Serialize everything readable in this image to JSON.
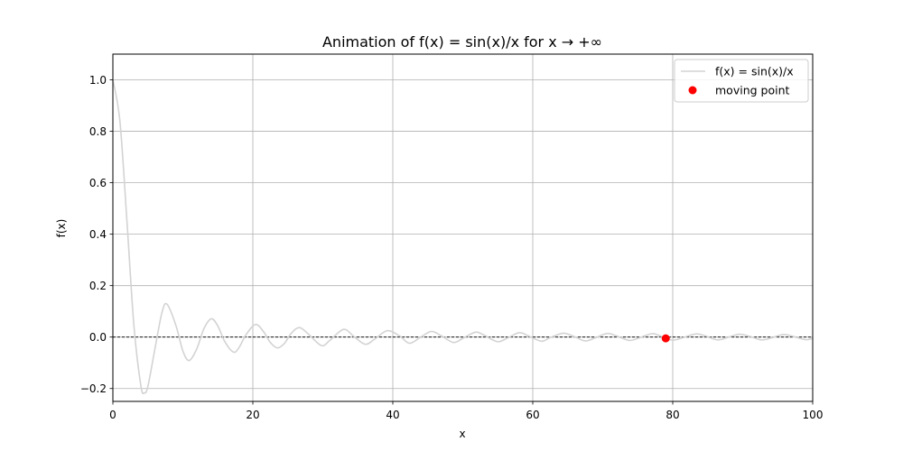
{
  "chart_data": {
    "type": "line",
    "title": "Animation of f(x) = sin(x)/x for x → +∞",
    "xlabel": "x",
    "ylabel": "f(x)",
    "xlim": [
      0,
      100
    ],
    "ylim": [
      -0.25,
      1.1
    ],
    "xticks": [
      0,
      20,
      40,
      60,
      80,
      100
    ],
    "xtick_labels": [
      "0",
      "20",
      "40",
      "60",
      "80",
      "100"
    ],
    "yticks": [
      -0.2,
      0.0,
      0.2,
      0.4,
      0.6,
      0.8,
      1.0
    ],
    "ytick_labels": [
      "−0.2",
      "0.0",
      "0.2",
      "0.4",
      "0.6",
      "0.8",
      "1.0"
    ],
    "grid": true,
    "legend_position": "top-right",
    "series": [
      {
        "name": "f(x) = sin(x)/x",
        "kind": "line",
        "color": "#d3d3d3",
        "x": [
          0,
          1,
          2,
          3,
          4,
          4.49,
          5,
          6,
          7,
          7.73,
          9,
          10,
          10.9,
          12,
          13,
          14.07,
          15,
          16,
          17.22,
          18,
          19,
          20.37,
          21.5,
          22.5,
          23.52,
          24.5,
          25.5,
          26.67,
          28,
          29.81,
          31,
          32.96,
          34.5,
          36.1,
          37.5,
          39.24,
          41,
          42.38,
          44,
          45.52,
          47,
          48.67,
          50,
          51.81,
          53,
          54.96,
          56.5,
          58.1,
          59.5,
          61.24,
          62.5,
          64.39,
          66,
          67.53,
          69,
          70.67,
          72,
          73.81,
          75,
          76.95,
          78,
          79.0,
          80.1,
          81.5,
          83.24,
          84.5,
          86.39,
          88,
          89.53,
          91,
          92.67,
          94,
          95.8,
          97,
          98.96,
          100
        ],
        "y": [
          1.0,
          0.841,
          0.455,
          0.047,
          -0.189,
          -0.217,
          -0.192,
          -0.047,
          0.094,
          0.128,
          0.046,
          -0.054,
          -0.091,
          -0.045,
          0.032,
          0.071,
          0.043,
          -0.018,
          -0.058,
          -0.042,
          0.008,
          0.049,
          0.022,
          -0.021,
          -0.042,
          -0.025,
          0.015,
          0.037,
          0.01,
          -0.033,
          -0.013,
          0.03,
          0.001,
          -0.028,
          -0.006,
          0.025,
          0.004,
          -0.024,
          0.0,
          0.022,
          0.004,
          -0.021,
          -0.005,
          0.019,
          0.008,
          -0.018,
          -0.002,
          0.017,
          0.003,
          -0.016,
          -0.002,
          0.015,
          0.001,
          -0.015,
          -0.002,
          0.014,
          0.004,
          -0.013,
          -0.005,
          0.013,
          0.007,
          -0.005,
          -0.012,
          -0.002,
          0.012,
          0.006,
          -0.011,
          -0.0,
          0.011,
          0.003,
          -0.011,
          -0.004,
          0.01,
          0.004,
          -0.01,
          -0.005
        ]
      },
      {
        "name": "moving point",
        "kind": "point",
        "color": "#ff0000",
        "x": [
          79.0
        ],
        "y": [
          -0.005
        ]
      }
    ],
    "reference_line": {
      "y": 0.0,
      "style": "dashed",
      "color": "#000000"
    }
  }
}
